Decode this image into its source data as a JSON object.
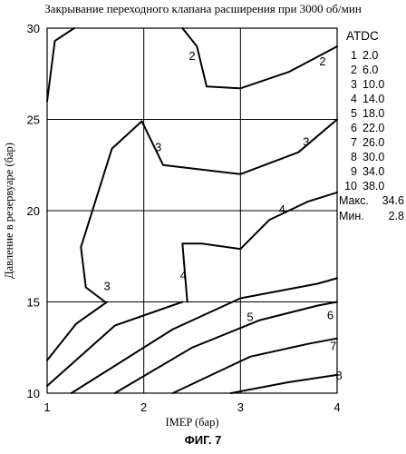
{
  "chart_data": {
    "type": "contour",
    "title": "Закрывание переходного клапана расширения при 3000 об/мин",
    "xlabel": "IMEP (бар)",
    "ylabel": "Давление в резервуаре (бар)",
    "xlim": [
      1,
      4
    ],
    "ylim": [
      10,
      30
    ],
    "xticks": [
      1,
      2,
      3,
      4
    ],
    "yticks": [
      10,
      15,
      20,
      25,
      30
    ],
    "grid": true,
    "legend": {
      "title": "ATDC",
      "position": "right",
      "entries": [
        {
          "level": "1",
          "value": "2.0"
        },
        {
          "level": "2",
          "value": "6.0"
        },
        {
          "level": "3",
          "value": "10.0"
        },
        {
          "level": "4",
          "value": "14.0"
        },
        {
          "level": "5",
          "value": "18.0"
        },
        {
          "level": "6",
          "value": "22.0"
        },
        {
          "level": "7",
          "value": "26.0"
        },
        {
          "level": "8",
          "value": "30.0"
        },
        {
          "level": "9",
          "value": "34.0"
        },
        {
          "level": "10",
          "value": "38.0"
        }
      ],
      "max_label": "Макс.",
      "max_value": "34.6",
      "min_label": "Мин.",
      "min_value": "2.8"
    },
    "contours": [
      {
        "level": "2",
        "points": [
          [
            1.0,
            26.0
          ],
          [
            1.08,
            29.3
          ],
          [
            1.28,
            30.0
          ]
        ]
      },
      {
        "level": "2",
        "points": [
          [
            2.4,
            30.0
          ],
          [
            2.55,
            29.0
          ],
          [
            2.65,
            26.8
          ],
          [
            3.0,
            26.7
          ],
          [
            3.5,
            27.6
          ],
          [
            4.0,
            29.0
          ]
        ]
      },
      {
        "level": "3",
        "points": [
          [
            1.6,
            15.0
          ],
          [
            1.4,
            15.8
          ],
          [
            1.35,
            18.0
          ],
          [
            1.67,
            23.4
          ],
          [
            1.98,
            24.9
          ],
          [
            2.2,
            22.5
          ],
          [
            3.0,
            22.0
          ],
          [
            3.6,
            23.2
          ],
          [
            4.0,
            25.0
          ]
        ]
      },
      {
        "level": "4",
        "points": [
          [
            2.45,
            15.0
          ],
          [
            2.4,
            18.2
          ],
          [
            2.6,
            18.2
          ],
          [
            3.0,
            17.9
          ],
          [
            3.3,
            19.5
          ],
          [
            3.7,
            20.5
          ],
          [
            4.0,
            21.0
          ]
        ]
      },
      {
        "level": "labelonly",
        "points": []
      },
      {
        "level": "",
        "points": [
          [
            1.0,
            11.8
          ],
          [
            1.3,
            13.8
          ],
          [
            1.62,
            15.0
          ]
        ]
      },
      {
        "level": "",
        "points": [
          [
            1.0,
            10.4
          ],
          [
            1.7,
            13.7
          ],
          [
            2.4,
            15.0
          ]
        ]
      },
      {
        "level": "5",
        "points": [
          [
            1.25,
            10.0
          ],
          [
            2.3,
            13.5
          ],
          [
            3.0,
            15.2
          ],
          [
            3.8,
            16.0
          ],
          [
            4.0,
            16.3
          ]
        ]
      },
      {
        "level": "6",
        "points": [
          [
            1.7,
            10.0
          ],
          [
            2.5,
            12.5
          ],
          [
            3.2,
            14.0
          ],
          [
            3.8,
            14.8
          ],
          [
            4.0,
            15.0
          ]
        ]
      },
      {
        "level": "7",
        "points": [
          [
            2.3,
            10.0
          ],
          [
            3.1,
            12.0
          ],
          [
            3.7,
            12.7
          ],
          [
            4.0,
            13.0
          ]
        ]
      },
      {
        "level": "8",
        "points": [
          [
            2.9,
            10.0
          ],
          [
            3.5,
            10.6
          ],
          [
            4.0,
            11.0
          ]
        ]
      }
    ],
    "contour_labels": [
      {
        "text": "2",
        "x": 2.5,
        "y": 28.5
      },
      {
        "text": "2",
        "x": 3.85,
        "y": 28.2
      },
      {
        "text": "3",
        "x": 2.15,
        "y": 23.5
      },
      {
        "text": "3",
        "x": 3.68,
        "y": 23.8
      },
      {
        "text": "3",
        "x": 1.62,
        "y": 15.9
      },
      {
        "text": "4",
        "x": 2.41,
        "y": 16.5
      },
      {
        "text": "4",
        "x": 3.43,
        "y": 20.1
      },
      {
        "text": "5",
        "x": 3.1,
        "y": 14.2
      },
      {
        "text": "6",
        "x": 3.93,
        "y": 14.3
      },
      {
        "text": "7",
        "x": 3.96,
        "y": 12.6
      },
      {
        "text": "8",
        "x": 4.02,
        "y": 11.0
      }
    ]
  },
  "caption": "ФИГ. 7"
}
